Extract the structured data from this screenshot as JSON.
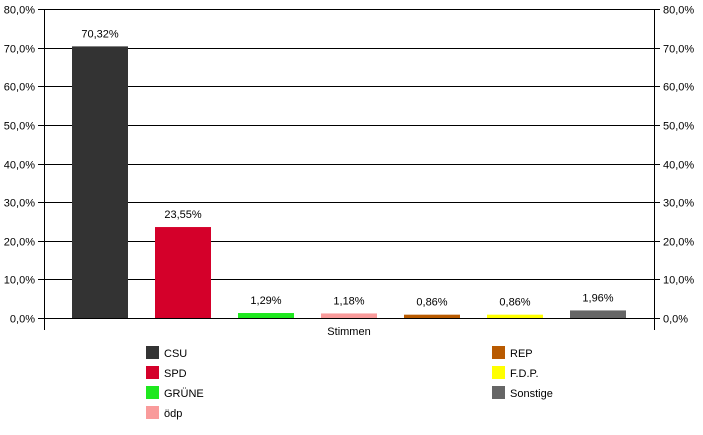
{
  "chart_data": {
    "type": "bar",
    "xlabel": "Stimmen",
    "ylim": [
      0,
      80
    ],
    "y_ticks": [
      "0,0%",
      "10,0%",
      "20,0%",
      "30,0%",
      "40,0%",
      "50,0%",
      "60,0%",
      "70,0%",
      "80,0%"
    ],
    "grid": true,
    "secondary_y_axis": true,
    "legend_position": "bottom",
    "series": [
      {
        "name": "CSU",
        "value": 70.32,
        "label": "70,32%",
        "color": "#333333"
      },
      {
        "name": "SPD",
        "value": 23.55,
        "label": "23,55%",
        "color": "#d4002a"
      },
      {
        "name": "GRÜNE",
        "value": 1.29,
        "label": "1,29%",
        "color": "#1ee81e"
      },
      {
        "name": "ödp",
        "value": 1.18,
        "label": "1,18%",
        "color": "#f99b9b"
      },
      {
        "name": "REP",
        "value": 0.86,
        "label": "0,86%",
        "color": "#b85a00"
      },
      {
        "name": "F.D.P.",
        "value": 0.86,
        "label": "0,86%",
        "color": "#ffff00"
      },
      {
        "name": "Sonstige",
        "value": 1.96,
        "label": "1,96%",
        "color": "#666666"
      }
    ]
  }
}
